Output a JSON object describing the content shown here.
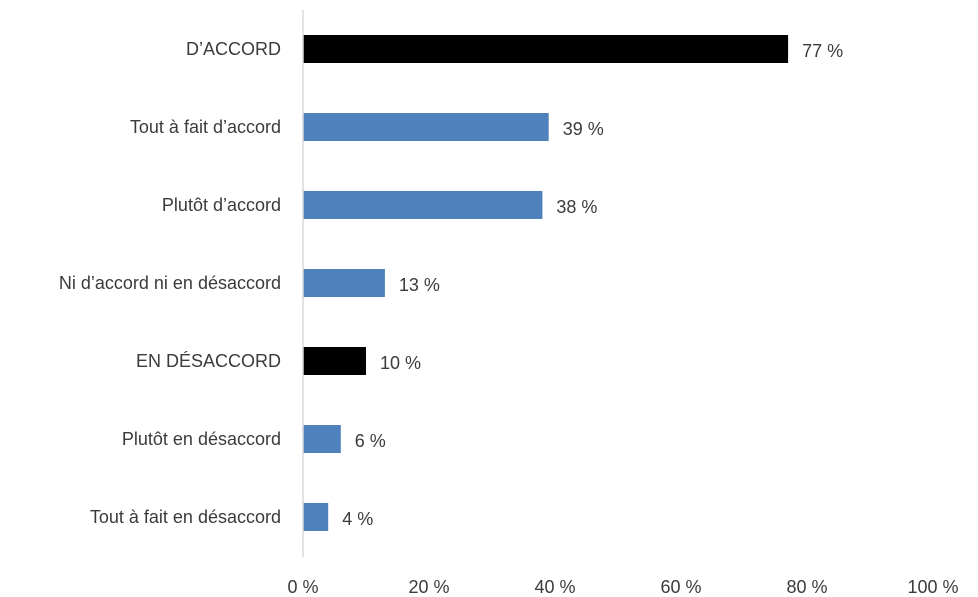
{
  "chart_data": {
    "type": "bar",
    "orientation": "horizontal",
    "title": "",
    "xlabel": "",
    "ylabel": "",
    "xlim": [
      0,
      100
    ],
    "grid": false,
    "legend": "none",
    "categories": [
      "D’ACCORD",
      "Tout à fait d’accord",
      "Plutôt d’accord",
      "Ni d’accord ni en désaccord",
      "EN DÉSACCORD",
      "Plutôt en désaccord",
      "Tout à fait en désaccord"
    ],
    "values": [
      77,
      39,
      38,
      13,
      10,
      6,
      4
    ],
    "value_labels": [
      "77 %",
      "39 %",
      "38 %",
      "13 %",
      "10 %",
      "6 %",
      "4 %"
    ],
    "bar_colors": [
      "#000000",
      "#4f81bd",
      "#4f81bd",
      "#4f81bd",
      "#000000",
      "#4f81bd",
      "#4f81bd"
    ],
    "x_ticks": [
      0,
      20,
      40,
      60,
      80,
      100
    ],
    "x_tick_labels": [
      "0 %",
      "20 %",
      "40 %",
      "60 %",
      "80 %",
      "100 %"
    ]
  }
}
